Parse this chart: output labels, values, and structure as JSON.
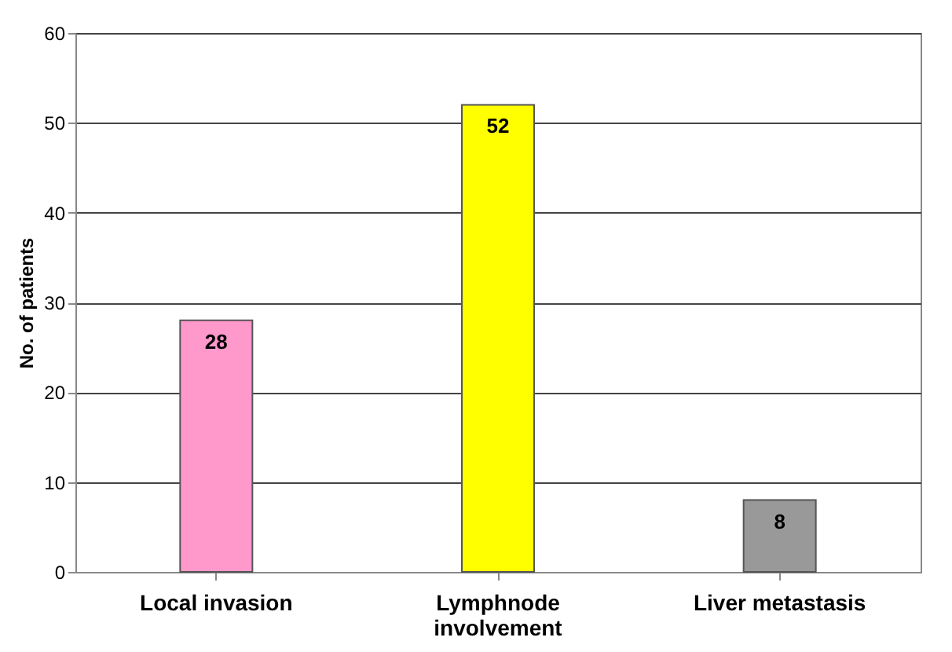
{
  "chart_data": {
    "type": "bar",
    "ylabel": "No. of patients",
    "categories": [
      "Local invasion",
      "Lymphnode involvement",
      "Liver metastasis"
    ],
    "values": [
      28,
      52,
      8
    ],
    "colors": [
      "#ff99cc",
      "#ffff00",
      "#999999"
    ],
    "ylim": [
      0,
      60
    ],
    "yticks": [
      0,
      10,
      20,
      30,
      40,
      50,
      60
    ],
    "grid": "y",
    "data_labels": true
  }
}
